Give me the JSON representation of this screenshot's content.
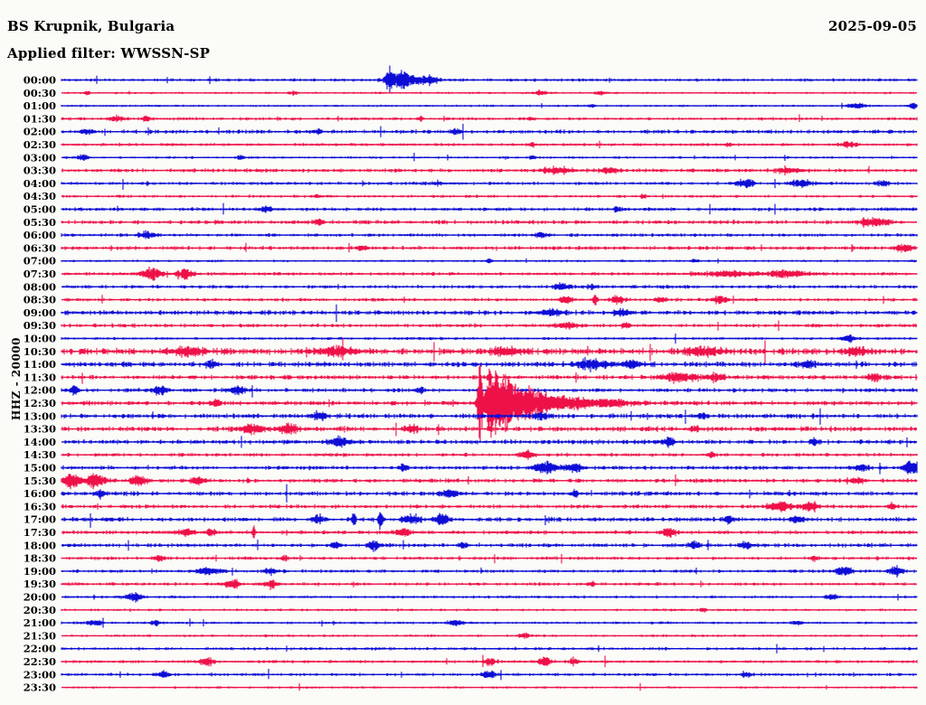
{
  "header": {
    "station_title": "BS Krupnik, Bulgaria",
    "filter_label": "Applied filter: WWSSN-SP",
    "date": "2025-09-05"
  },
  "axis": {
    "channel_scale_label": "HHZ - 20000"
  },
  "colors": {
    "blue": "#0d0dd6",
    "red": "#ee1148",
    "background": "#fbfbf8",
    "text": "#000000"
  },
  "chart_data": {
    "type": "line",
    "subtype": "helicorder-seismogram",
    "title": "BS Krupnik, Bulgaria",
    "xlabel": "",
    "ylabel": "HHZ - 20000",
    "row_interval_minutes": 30,
    "time_span": [
      "00:00",
      "23:30"
    ],
    "grid": false,
    "legend": "none",
    "note": "events are [center_fraction_of_row_width, gaussian_halfwidth_px, amplitude_px]; large quake at 12:30 ~49% across row",
    "rows": [
      {
        "t": "00:00",
        "c": "blue",
        "b": 1.1,
        "e": [
          [
            0.383,
            3,
            13
          ],
          [
            0.398,
            16,
            9
          ],
          [
            0.43,
            10,
            5
          ]
        ]
      },
      {
        "t": "00:30",
        "c": "red",
        "b": 0.8,
        "e": [
          [
            0.03,
            4,
            2.5
          ],
          [
            0.27,
            5,
            2
          ],
          [
            0.56,
            8,
            2.5
          ],
          [
            0.63,
            5,
            2
          ]
        ]
      },
      {
        "t": "01:00",
        "c": "blue",
        "b": 0.8,
        "e": [
          [
            0.62,
            4,
            2
          ],
          [
            0.93,
            10,
            2.5
          ],
          [
            0.995,
            5,
            3
          ]
        ]
      },
      {
        "t": "01:30",
        "c": "red",
        "b": 1.1,
        "e": [
          [
            0.065,
            9,
            3
          ],
          [
            0.1,
            5,
            3
          ],
          [
            0.42,
            4,
            2
          ],
          [
            0.55,
            4,
            2
          ]
        ]
      },
      {
        "t": "02:00",
        "c": "blue",
        "b": 1.4,
        "e": [
          [
            0.03,
            8,
            2.5
          ],
          [
            0.3,
            5,
            2
          ],
          [
            0.46,
            4,
            2.5
          ]
        ]
      },
      {
        "t": "02:30",
        "c": "red",
        "b": 1.1,
        "e": [
          [
            0.55,
            5,
            2
          ],
          [
            0.78,
            4,
            2
          ],
          [
            0.92,
            8,
            3
          ]
        ]
      },
      {
        "t": "03:00",
        "c": "blue",
        "b": 0.9,
        "e": [
          [
            0.025,
            6,
            3
          ],
          [
            0.21,
            4,
            2.5
          ],
          [
            0.55,
            4,
            2
          ]
        ]
      },
      {
        "t": "03:30",
        "c": "red",
        "b": 1.4,
        "e": [
          [
            0.58,
            18,
            3
          ],
          [
            0.64,
            9,
            3.5
          ],
          [
            0.85,
            14,
            3
          ]
        ]
      },
      {
        "t": "04:00",
        "c": "blue",
        "b": 1.2,
        "e": [
          [
            0.44,
            5,
            2.5
          ],
          [
            0.8,
            9,
            4
          ],
          [
            0.865,
            11,
            4
          ],
          [
            0.96,
            6,
            3
          ]
        ]
      },
      {
        "t": "04:30",
        "c": "red",
        "b": 1.0,
        "e": [
          [
            0.3,
            5,
            2
          ],
          [
            0.68,
            4,
            2
          ]
        ]
      },
      {
        "t": "05:00",
        "c": "blue",
        "b": 1.3,
        "e": [
          [
            0.24,
            6,
            3
          ],
          [
            0.65,
            5,
            2.5
          ]
        ]
      },
      {
        "t": "05:30",
        "c": "red",
        "b": 1.5,
        "e": [
          [
            0.3,
            6,
            2.5
          ],
          [
            0.95,
            18,
            3.5
          ]
        ]
      },
      {
        "t": "06:00",
        "c": "blue",
        "b": 1.2,
        "e": [
          [
            0.1,
            9,
            4
          ],
          [
            0.56,
            5,
            3
          ]
        ]
      },
      {
        "t": "06:30",
        "c": "red",
        "b": 1.4,
        "e": [
          [
            0.35,
            5,
            2.5
          ],
          [
            0.985,
            9,
            4
          ]
        ]
      },
      {
        "t": "07:00",
        "c": "blue",
        "b": 0.9,
        "e": [
          [
            0.5,
            4,
            2
          ],
          [
            0.74,
            4,
            2
          ]
        ]
      },
      {
        "t": "07:30",
        "c": "red",
        "b": 1.2,
        "e": [
          [
            0.105,
            12,
            6
          ],
          [
            0.145,
            9,
            5
          ],
          [
            0.78,
            28,
            3
          ],
          [
            0.85,
            22,
            4
          ]
        ]
      },
      {
        "t": "08:00",
        "c": "blue",
        "b": 1.3,
        "e": [
          [
            0.585,
            8,
            4
          ],
          [
            0.62,
            6,
            3
          ]
        ]
      },
      {
        "t": "08:30",
        "c": "red",
        "b": 1.2,
        "e": [
          [
            0.59,
            8,
            4
          ],
          [
            0.624,
            2,
            7
          ],
          [
            0.65,
            8,
            4
          ],
          [
            0.7,
            5,
            3
          ],
          [
            0.77,
            8,
            4
          ]
        ]
      },
      {
        "t": "09:00",
        "c": "blue",
        "b": 1.7,
        "e": [
          [
            0.57,
            12,
            3
          ],
          [
            0.655,
            8,
            4
          ]
        ]
      },
      {
        "t": "09:30",
        "c": "red",
        "b": 1.3,
        "e": [
          [
            0.59,
            14,
            3
          ],
          [
            0.66,
            5,
            3
          ]
        ]
      },
      {
        "t": "10:00",
        "c": "blue",
        "b": 1.0,
        "e": [
          [
            0.92,
            8,
            4
          ]
        ]
      },
      {
        "t": "10:30",
        "c": "red",
        "b": 2.3,
        "e": [
          [
            0.15,
            20,
            4
          ],
          [
            0.32,
            24,
            4
          ],
          [
            0.52,
            18,
            3.5
          ],
          [
            0.75,
            20,
            4
          ],
          [
            0.93,
            12,
            4
          ]
        ]
      },
      {
        "t": "11:00",
        "c": "blue",
        "b": 1.9,
        "e": [
          [
            0.175,
            6,
            4
          ],
          [
            0.62,
            18,
            5
          ],
          [
            0.665,
            9,
            5
          ],
          [
            0.87,
            8,
            4
          ]
        ]
      },
      {
        "t": "11:30",
        "c": "red",
        "b": 1.6,
        "e": [
          [
            0.5,
            2,
            8
          ],
          [
            0.725,
            18,
            5
          ],
          [
            0.765,
            9,
            4
          ],
          [
            0.95,
            8,
            4
          ]
        ]
      },
      {
        "t": "12:00",
        "c": "blue",
        "b": 1.5,
        "e": [
          [
            0.015,
            6,
            4
          ],
          [
            0.115,
            8,
            5
          ],
          [
            0.205,
            8,
            5
          ],
          [
            0.42,
            5,
            3
          ]
        ]
      },
      {
        "t": "12:30",
        "c": "red",
        "b": 1.6,
        "e": [
          [
            0.489,
            2.5,
            50
          ],
          [
            0.503,
            9,
            28
          ],
          [
            0.522,
            15,
            26
          ],
          [
            0.552,
            18,
            14
          ],
          [
            0.59,
            22,
            7
          ],
          [
            0.64,
            28,
            4
          ],
          [
            0.18,
            6,
            4
          ]
        ]
      },
      {
        "t": "13:00",
        "c": "blue",
        "b": 1.7,
        "e": [
          [
            0.3,
            8,
            4
          ],
          [
            0.56,
            9,
            4
          ],
          [
            0.75,
            5,
            3
          ]
        ]
      },
      {
        "t": "13:30",
        "c": "red",
        "b": 1.8,
        "e": [
          [
            0.225,
            13,
            5
          ],
          [
            0.265,
            10,
            5
          ],
          [
            0.41,
            8,
            4
          ],
          [
            0.74,
            5,
            3
          ]
        ]
      },
      {
        "t": "14:00",
        "c": "blue",
        "b": 1.6,
        "e": [
          [
            0.325,
            11,
            5
          ],
          [
            0.71,
            6,
            4
          ],
          [
            0.88,
            4,
            3
          ]
        ]
      },
      {
        "t": "14:30",
        "c": "red",
        "b": 1.3,
        "e": [
          [
            0.545,
            8,
            4
          ],
          [
            0.76,
            5,
            3
          ]
        ]
      },
      {
        "t": "15:00",
        "c": "blue",
        "b": 1.4,
        "e": [
          [
            0.4,
            5,
            4
          ],
          [
            0.565,
            13,
            6
          ],
          [
            0.6,
            9,
            5
          ],
          [
            0.935,
            8,
            4
          ],
          [
            0.995,
            10,
            7
          ]
        ]
      },
      {
        "t": "15:30",
        "c": "red",
        "b": 1.5,
        "e": [
          [
            0.012,
            9,
            8
          ],
          [
            0.04,
            11,
            7
          ],
          [
            0.09,
            9,
            5
          ],
          [
            0.16,
            8,
            4
          ],
          [
            0.93,
            8,
            3
          ]
        ]
      },
      {
        "t": "16:00",
        "c": "blue",
        "b": 1.6,
        "e": [
          [
            0.045,
            6,
            4
          ],
          [
            0.455,
            8,
            4
          ],
          [
            0.6,
            5,
            3
          ]
        ]
      },
      {
        "t": "16:30",
        "c": "red",
        "b": 1.4,
        "e": [
          [
            0.84,
            13,
            5
          ],
          [
            0.875,
            9,
            5
          ],
          [
            0.97,
            5,
            3
          ]
        ]
      },
      {
        "t": "17:00",
        "c": "blue",
        "b": 1.6,
        "e": [
          [
            0.3,
            8,
            4
          ],
          [
            0.342,
            2,
            11
          ],
          [
            0.373,
            2,
            12
          ],
          [
            0.41,
            9,
            5
          ],
          [
            0.445,
            8,
            5
          ],
          [
            0.78,
            6,
            4
          ],
          [
            0.86,
            8,
            4
          ]
        ]
      },
      {
        "t": "17:30",
        "c": "red",
        "b": 1.4,
        "e": [
          [
            0.145,
            8,
            4
          ],
          [
            0.175,
            6,
            4
          ],
          [
            0.225,
            1.5,
            10
          ],
          [
            0.4,
            8,
            4
          ],
          [
            0.71,
            8,
            5
          ]
        ]
      },
      {
        "t": "18:00",
        "c": "blue",
        "b": 1.4,
        "e": [
          [
            0.32,
            6,
            4
          ],
          [
            0.365,
            7,
            5
          ],
          [
            0.47,
            5,
            3
          ],
          [
            0.74,
            6,
            4
          ],
          [
            0.8,
            6,
            4
          ]
        ]
      },
      {
        "t": "18:30",
        "c": "red",
        "b": 1.2,
        "e": [
          [
            0.115,
            6,
            4
          ],
          [
            0.26,
            4,
            3
          ],
          [
            0.88,
            4,
            3
          ]
        ]
      },
      {
        "t": "19:00",
        "c": "blue",
        "b": 1.2,
        "e": [
          [
            0.17,
            14,
            3
          ],
          [
            0.245,
            8,
            3
          ],
          [
            0.915,
            9,
            5
          ],
          [
            0.975,
            7,
            6
          ]
        ]
      },
      {
        "t": "19:30",
        "c": "red",
        "b": 1.2,
        "e": [
          [
            0.2,
            9,
            4
          ],
          [
            0.245,
            7,
            4
          ],
          [
            0.62,
            4,
            2.5
          ]
        ]
      },
      {
        "t": "20:00",
        "c": "blue",
        "b": 1.0,
        "e": [
          [
            0.085,
            9,
            5
          ],
          [
            0.9,
            6,
            3
          ]
        ]
      },
      {
        "t": "20:30",
        "c": "red",
        "b": 0.9,
        "e": [
          [
            0.75,
            4,
            2
          ]
        ]
      },
      {
        "t": "21:00",
        "c": "blue",
        "b": 0.9,
        "e": [
          [
            0.04,
            8,
            3
          ],
          [
            0.11,
            6,
            3
          ],
          [
            0.46,
            8,
            3
          ],
          [
            0.86,
            5,
            3
          ]
        ]
      },
      {
        "t": "21:30",
        "c": "red",
        "b": 0.9,
        "e": [
          [
            0.54,
            6,
            3
          ]
        ]
      },
      {
        "t": "22:00",
        "c": "blue",
        "b": 1.1,
        "e": []
      },
      {
        "t": "22:30",
        "c": "red",
        "b": 1.1,
        "e": [
          [
            0.17,
            8,
            4
          ],
          [
            0.5,
            6,
            4
          ],
          [
            0.565,
            7,
            5
          ],
          [
            0.6,
            5,
            4
          ]
        ]
      },
      {
        "t": "23:00",
        "c": "blue",
        "b": 1.1,
        "e": [
          [
            0.12,
            6,
            4
          ],
          [
            0.5,
            8,
            4
          ],
          [
            0.8,
            6,
            3
          ]
        ]
      },
      {
        "t": "23:30",
        "c": "red",
        "b": 0.8,
        "e": []
      }
    ]
  }
}
